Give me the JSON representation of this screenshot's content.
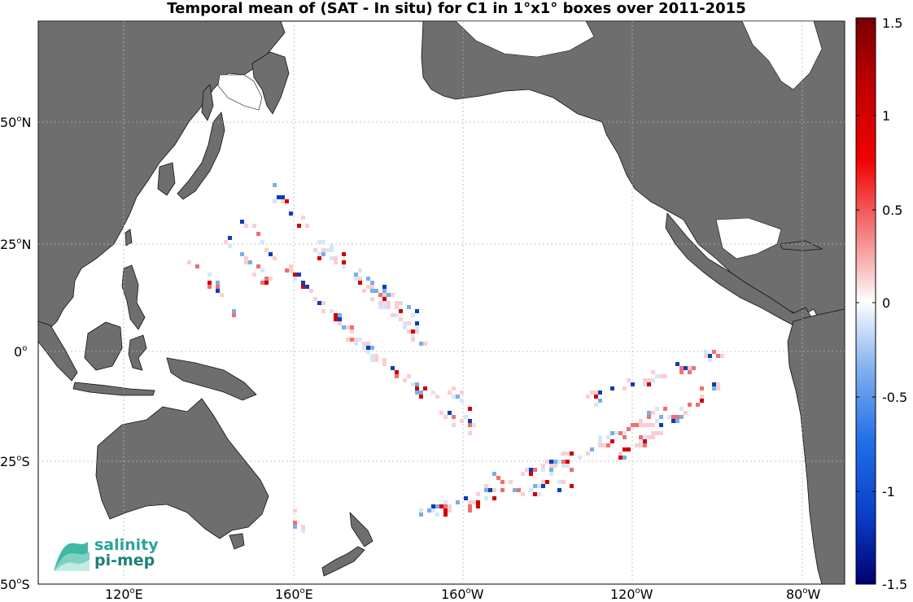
{
  "title": "Temporal mean of (SAT - In situ) for C1 in 1°x1° boxes over 2011-2015",
  "colors": {
    "land": "#6e6e6e",
    "ocean": "#ffffff",
    "grid": "#b0b0b0",
    "positive_strong": "#d10000",
    "positive_mid": "#f07070",
    "positive_weak": "#f9cfd0",
    "negative_weak": "#d6e6fa",
    "negative_mid": "#7aaeea",
    "negative_strong": "#0a3eb8"
  },
  "axes": {
    "lon_ticks": [
      {
        "label": "120",
        "dir": "E"
      },
      {
        "label": "160",
        "dir": "E"
      },
      {
        "label": "160",
        "dir": "W"
      },
      {
        "label": "120",
        "dir": "W"
      },
      {
        "label": "80",
        "dir": "W"
      }
    ],
    "lat_ticks": [
      {
        "label": "50",
        "dir": "N"
      },
      {
        "label": "25",
        "dir": "N"
      },
      {
        "label": "0",
        "dir": ""
      },
      {
        "label": "25",
        "dir": "S"
      },
      {
        "label": "50",
        "dir": "S"
      }
    ],
    "degree_symbol": "o"
  },
  "colorbar": {
    "range": [
      -1.5,
      1.5
    ],
    "tick_labels": [
      "1.5",
      "1",
      "0.5",
      "0",
      "-0.5",
      "-1",
      "-1.5"
    ],
    "colormap": "blue-white-red (diverging)"
  },
  "logo": {
    "line1": "salinity",
    "line2": "pi-mep"
  }
}
